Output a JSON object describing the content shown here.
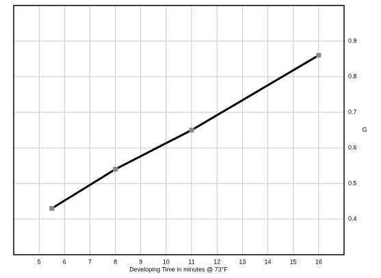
{
  "chart_data": {
    "type": "line",
    "x_label": "Developing Time in minutes @ 73°F",
    "y_label": "G",
    "series": [
      {
        "color": "#000000",
        "marker_color": "#888888",
        "x": [
          5.5,
          8,
          11,
          16
        ],
        "values": [
          0.43,
          0.54,
          0.65,
          0.86
        ]
      }
    ],
    "xlim": [
      4,
      17
    ],
    "xticks": [
      5,
      6,
      7,
      8,
      9,
      10,
      11,
      12,
      13,
      14,
      15,
      16
    ],
    "ylim": [
      0.3,
      1.0
    ],
    "yticks": [
      0.4,
      0.5,
      0.6,
      0.7,
      0.8,
      0.9
    ],
    "grid": true
  }
}
